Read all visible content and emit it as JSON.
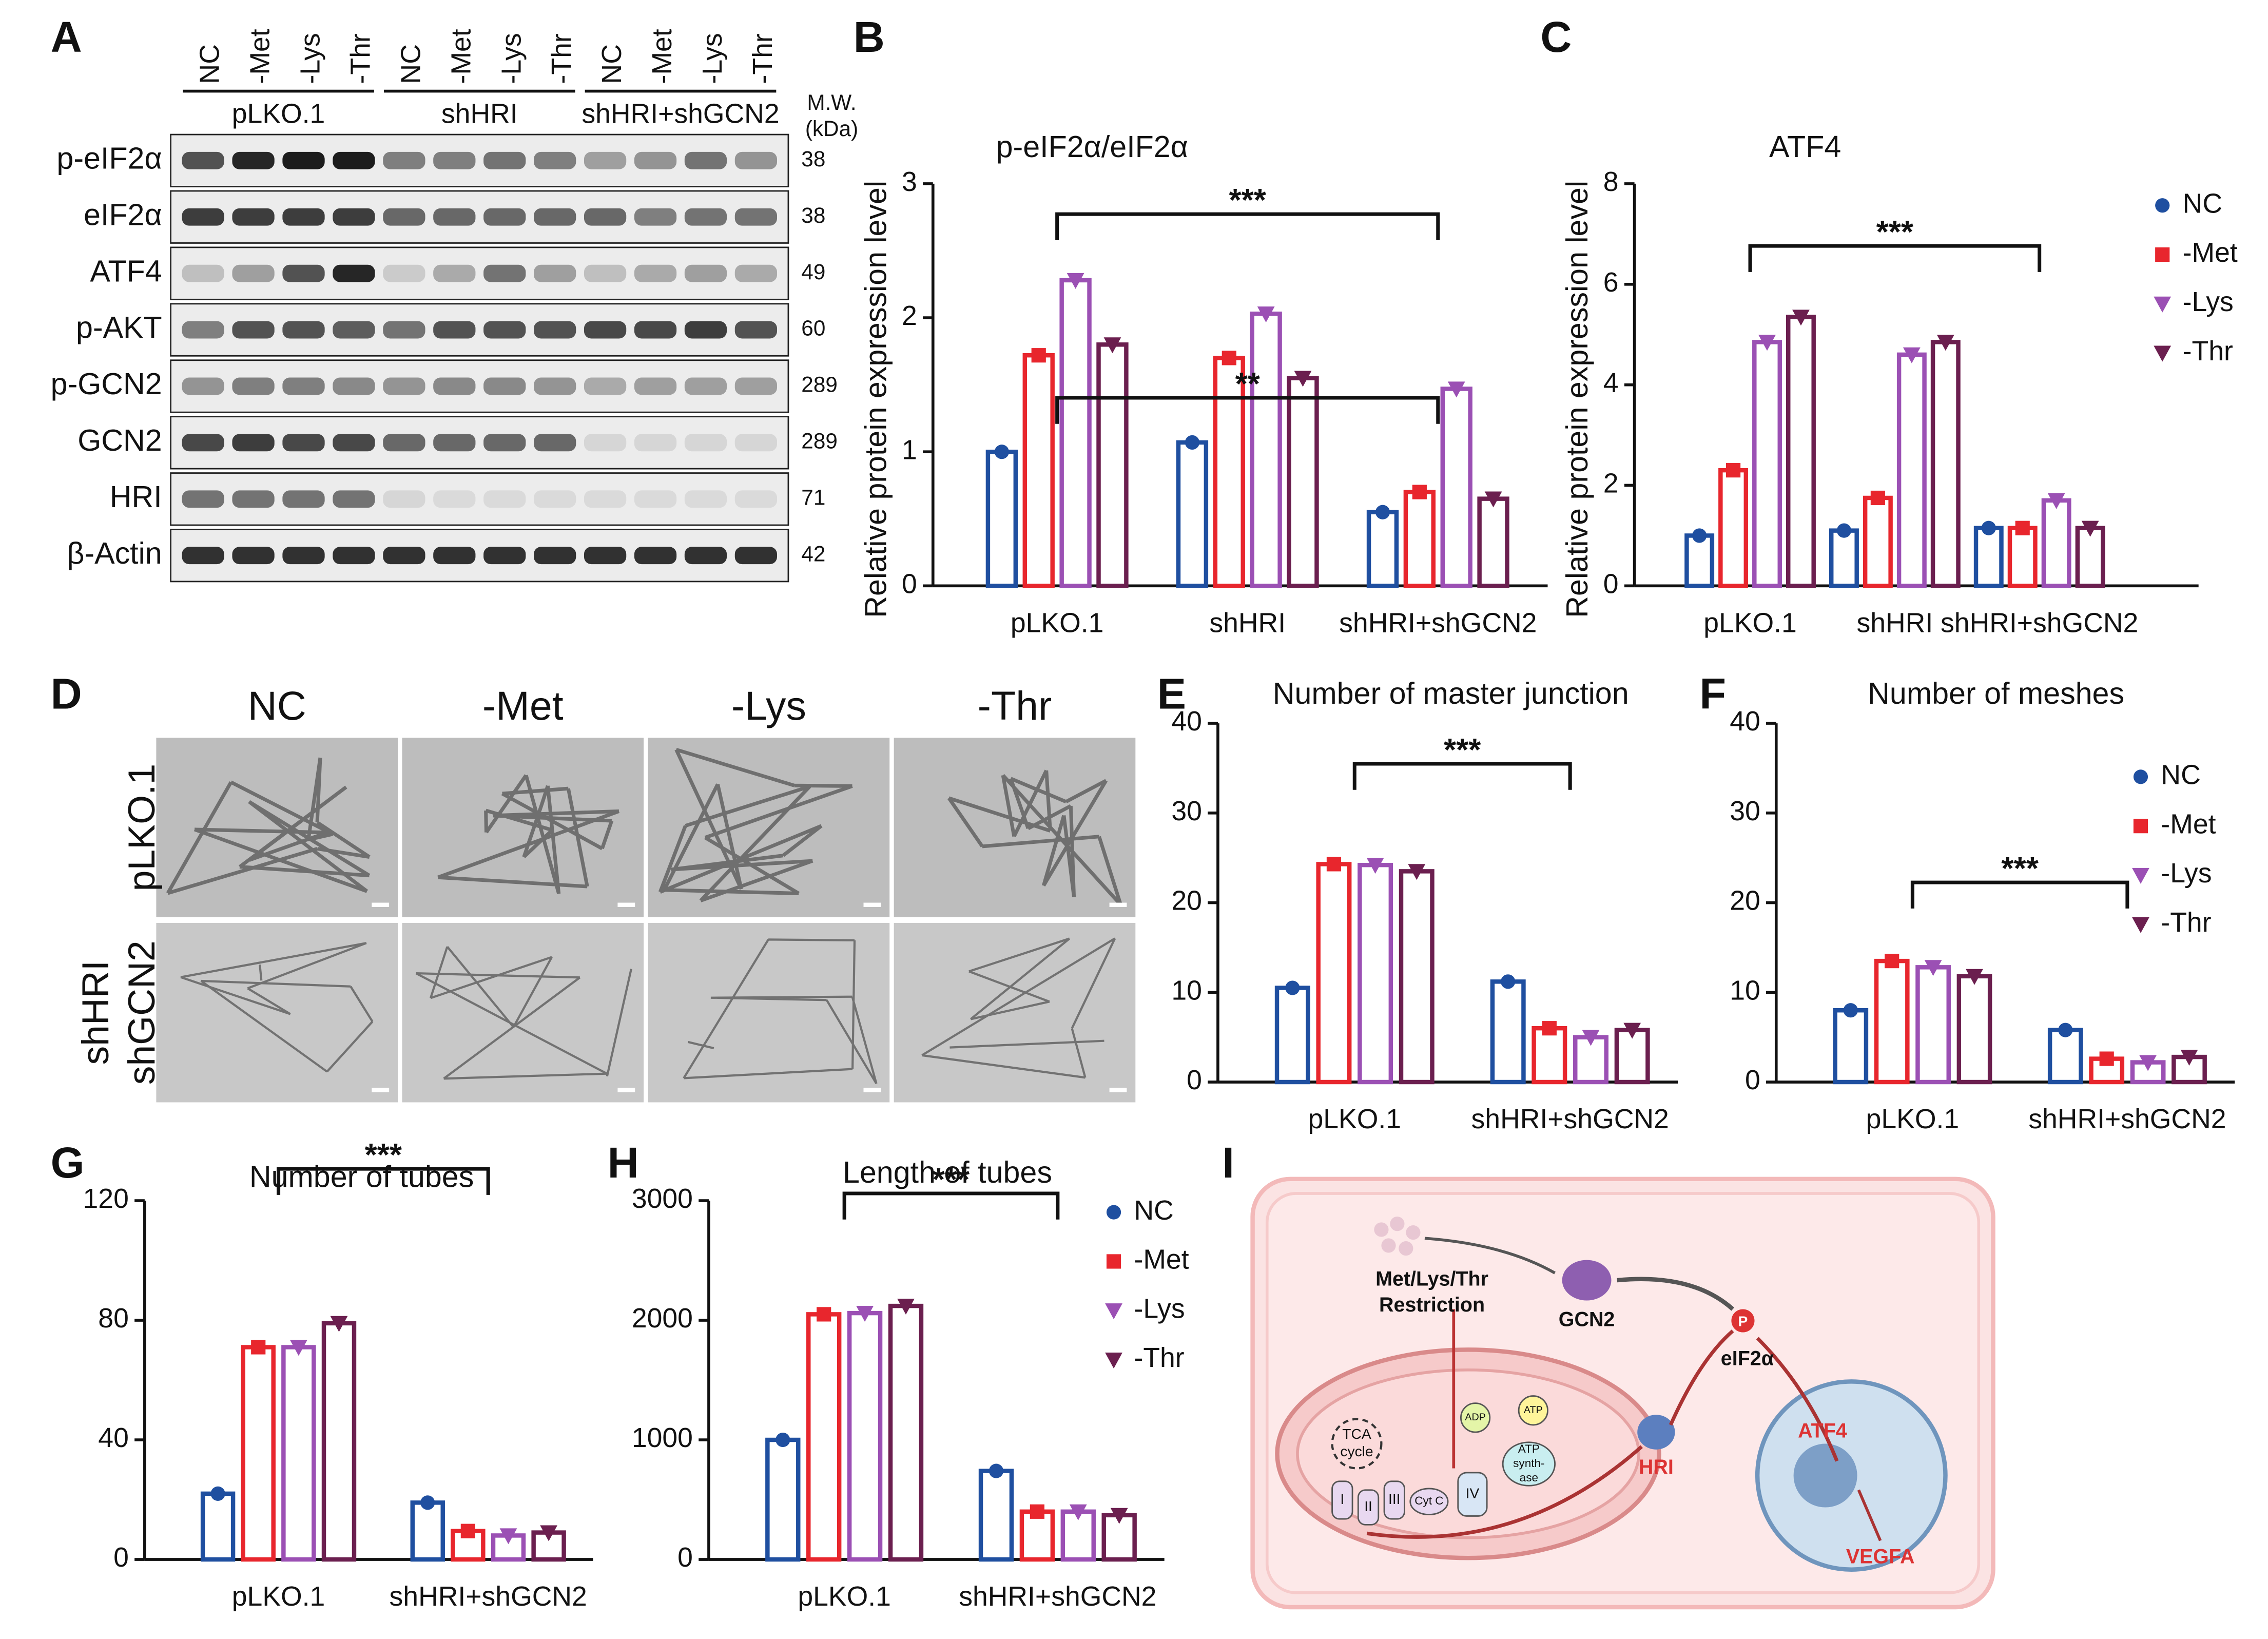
{
  "panel_labels": [
    "A",
    "B",
    "C",
    "D",
    "E",
    "F",
    "G",
    "H",
    "I"
  ],
  "blot": {
    "lanes": [
      "NC",
      "-Met",
      "-Lys",
      "-Thr",
      "NC",
      "-Met",
      "-Lys",
      "-Thr",
      "NC",
      "-Met",
      "-Lys",
      "-Thr"
    ],
    "groups": [
      "pLKO.1",
      "shHRI",
      "shHRI+shGCN2"
    ],
    "mw_header": [
      "M.W.",
      "(kDa)"
    ],
    "rows": [
      {
        "label": "p-eIF2α",
        "mw": 38
      },
      {
        "label": "eIF2α",
        "mw": 38
      },
      {
        "label": "ATF4",
        "mw": 49
      },
      {
        "label": "p-AKT",
        "mw": 60
      },
      {
        "label": "p-GCN2",
        "mw": 289
      },
      {
        "label": "GCN2",
        "mw": 289
      },
      {
        "label": "HRI",
        "mw": 71
      },
      {
        "label": "β-Actin",
        "mw": 42
      }
    ]
  },
  "micrographs": {
    "columns": [
      "NC",
      "-Met",
      "-Lys",
      "-Thr"
    ],
    "rows": [
      "pLKO.1",
      "shHRI",
      "shGCN2"
    ]
  },
  "diagram": {
    "nutrients": [
      "Met/Lys/Thr",
      "Restriction"
    ],
    "gcn2": "GCN2",
    "eif2a": "eIF2α",
    "phospho": "P",
    "hri": "HRI",
    "atf4": "ATF4",
    "vegfa": "VEGFA",
    "tca": [
      "TCA",
      "cycle"
    ],
    "complexes": [
      "I",
      "II",
      "III",
      "Cyt C",
      "IV"
    ],
    "adp": "ADP",
    "atp": "ATP",
    "synthase": [
      "ATP",
      "synth-",
      "ase"
    ]
  },
  "chart_data": [
    {
      "type": "bar",
      "title": "p-eIF2α/eIF2α",
      "ylabel": "Relative protein expression level",
      "categories": [
        "pLKO.1",
        "shHRI",
        "shHRI+shGCN2"
      ],
      "series": [
        {
          "name": "NC",
          "color": "#1f4fa0",
          "values": [
            1.0,
            1.07,
            0.55
          ]
        },
        {
          "name": "-Met",
          "color": "#e8262d",
          "values": [
            1.72,
            1.7,
            0.7
          ]
        },
        {
          "name": "-Lys",
          "color": "#9b50b4",
          "values": [
            2.28,
            2.03,
            1.47
          ]
        },
        {
          "name": "-Thr",
          "color": "#6b1f4f",
          "values": [
            1.8,
            1.55,
            0.65
          ]
        }
      ],
      "ylim": [
        0,
        3
      ],
      "yticks": [
        0,
        1,
        2,
        3
      ],
      "annotations": [
        "***",
        "**"
      ]
    },
    {
      "type": "bar",
      "title": "ATF4",
      "ylabel": "Relative protein expression level",
      "categories": [
        "pLKO.1",
        "shHRI",
        "shHRI+shGCN2"
      ],
      "series": [
        {
          "name": "NC",
          "color": "#1f4fa0",
          "values": [
            1.0,
            1.1,
            1.15
          ]
        },
        {
          "name": "-Met",
          "color": "#e8262d",
          "values": [
            2.3,
            1.75,
            1.15
          ]
        },
        {
          "name": "-Lys",
          "color": "#9b50b4",
          "values": [
            4.85,
            4.6,
            1.7
          ]
        },
        {
          "name": "-Thr",
          "color": "#6b1f4f",
          "values": [
            5.35,
            4.85,
            1.15
          ]
        }
      ],
      "ylim": [
        0,
        8
      ],
      "yticks": [
        0,
        2,
        4,
        6,
        8
      ],
      "annotations": [
        "***"
      ],
      "legend": "right"
    },
    {
      "type": "bar",
      "title": "Number of master junction",
      "categories": [
        "pLKO.1",
        "shHRI+shGCN2"
      ],
      "series": [
        {
          "name": "NC",
          "color": "#1f4fa0",
          "values": [
            10.5,
            11.2
          ]
        },
        {
          "name": "-Met",
          "color": "#e8262d",
          "values": [
            24.3,
            6
          ]
        },
        {
          "name": "-Lys",
          "color": "#9b50b4",
          "values": [
            24.2,
            5
          ]
        },
        {
          "name": "-Thr",
          "color": "#6b1f4f",
          "values": [
            23.5,
            5.8
          ]
        }
      ],
      "ylim": [
        0,
        40
      ],
      "yticks": [
        0,
        10,
        20,
        30,
        40
      ],
      "annotations": [
        "***"
      ]
    },
    {
      "type": "bar",
      "title": "Number of meshes",
      "categories": [
        "pLKO.1",
        "shHRI+shGCN2"
      ],
      "series": [
        {
          "name": "NC",
          "color": "#1f4fa0",
          "values": [
            8,
            5.8
          ]
        },
        {
          "name": "-Met",
          "color": "#e8262d",
          "values": [
            13.5,
            2.6
          ]
        },
        {
          "name": "-Lys",
          "color": "#9b50b4",
          "values": [
            12.8,
            2.2
          ]
        },
        {
          "name": "-Thr",
          "color": "#6b1f4f",
          "values": [
            11.8,
            2.8
          ]
        }
      ],
      "ylim": [
        0,
        40
      ],
      "yticks": [
        0,
        10,
        20,
        30,
        40
      ],
      "annotations": [
        "***"
      ],
      "legend": "right"
    },
    {
      "type": "bar",
      "title": "Number of tubes",
      "categories": [
        "pLKO.1",
        "shHRI+shGCN2"
      ],
      "series": [
        {
          "name": "NC",
          "color": "#1f4fa0",
          "values": [
            22,
            19
          ]
        },
        {
          "name": "-Met",
          "color": "#e8262d",
          "values": [
            71,
            9.5
          ]
        },
        {
          "name": "-Lys",
          "color": "#9b50b4",
          "values": [
            71,
            8
          ]
        },
        {
          "name": "-Thr",
          "color": "#6b1f4f",
          "values": [
            79,
            9
          ]
        }
      ],
      "ylim": [
        0,
        120
      ],
      "yticks": [
        0,
        40,
        80,
        120
      ],
      "annotations": [
        "***"
      ]
    },
    {
      "type": "bar",
      "title": "Length of tubes",
      "categories": [
        "pLKO.1",
        "shHRI+shGCN2"
      ],
      "series": [
        {
          "name": "NC",
          "color": "#1f4fa0",
          "values": [
            1000,
            740
          ]
        },
        {
          "name": "-Met",
          "color": "#e8262d",
          "values": [
            2050,
            400
          ]
        },
        {
          "name": "-Lys",
          "color": "#9b50b4",
          "values": [
            2060,
            400
          ]
        },
        {
          "name": "-Thr",
          "color": "#6b1f4f",
          "values": [
            2120,
            370
          ]
        }
      ],
      "ylim": [
        0,
        3000
      ],
      "yticks": [
        0,
        1000,
        2000,
        3000
      ],
      "annotations": [
        "***"
      ],
      "legend": "right"
    }
  ]
}
